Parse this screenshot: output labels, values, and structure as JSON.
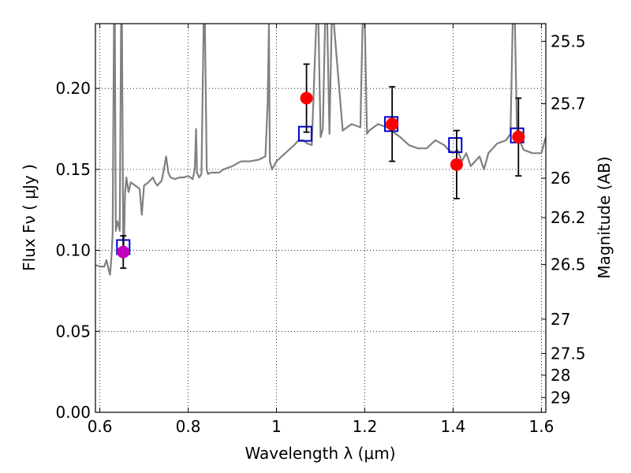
{
  "chart_data": {
    "type": "scatter",
    "xlabel": "Wavelength  λ (μm)",
    "ylabel_left": "Flux  Fν  ( μJy )",
    "ylabel_right": "Magnitude (AB)",
    "xlim": [
      0.59,
      1.61
    ],
    "ylim": [
      0.0,
      0.24
    ],
    "x_ticks": [
      0.6,
      0.8,
      1.0,
      1.2,
      1.4,
      1.6
    ],
    "x_tick_labels": [
      "0.6",
      "0.8",
      "1",
      "1.2",
      "1.4",
      "1.6"
    ],
    "y_ticks": [
      0.0,
      0.05,
      0.1,
      0.15,
      0.2
    ],
    "y_tick_labels": [
      "0.00",
      "0.05",
      "0.10",
      "0.15",
      "0.20"
    ],
    "right_ticks": [
      {
        "label": "25.5",
        "mag": 25.5
      },
      {
        "label": "25.7",
        "mag": 25.7
      },
      {
        "label": "26",
        "mag": 26.0
      },
      {
        "label": "26.2",
        "mag": 26.2
      },
      {
        "label": "26.5",
        "mag": 26.5
      },
      {
        "label": "27",
        "mag": 27.0
      },
      {
        "label": "27.5",
        "mag": 27.5
      },
      {
        "label": "28",
        "mag": 28.0
      },
      {
        "label": "29",
        "mag": 29.0
      }
    ],
    "grid": true,
    "series": [
      {
        "kind": "line",
        "color": "#808080",
        "x": [
          0.59,
          0.6,
          0.61,
          0.615,
          0.62,
          0.623,
          0.626,
          0.629,
          0.632,
          0.634,
          0.636,
          0.64,
          0.645,
          0.648,
          0.65,
          0.653,
          0.655,
          0.657,
          0.66,
          0.665,
          0.67,
          0.68,
          0.69,
          0.695,
          0.7,
          0.71,
          0.72,
          0.725,
          0.73,
          0.74,
          0.745,
          0.75,
          0.755,
          0.76,
          0.77,
          0.78,
          0.79,
          0.8,
          0.81,
          0.815,
          0.818,
          0.82,
          0.825,
          0.83,
          0.835,
          0.838,
          0.842,
          0.845,
          0.85,
          0.86,
          0.87,
          0.88,
          0.9,
          0.92,
          0.94,
          0.96,
          0.975,
          0.98,
          0.983,
          0.985,
          0.99,
          1.0,
          1.02,
          1.04,
          1.05,
          1.06,
          1.07,
          1.08,
          1.09,
          1.095,
          1.1,
          1.105,
          1.11,
          1.115,
          1.12,
          1.125,
          1.13,
          1.15,
          1.17,
          1.19,
          1.195,
          1.2,
          1.205,
          1.21,
          1.23,
          1.25,
          1.26,
          1.28,
          1.3,
          1.32,
          1.34,
          1.36,
          1.38,
          1.39,
          1.4,
          1.41,
          1.42,
          1.43,
          1.44,
          1.45,
          1.46,
          1.47,
          1.48,
          1.5,
          1.52,
          1.53,
          1.535,
          1.54,
          1.545,
          1.55,
          1.56,
          1.58,
          1.59,
          1.6,
          1.61
        ],
        "y": [
          0.091,
          0.09,
          0.09,
          0.094,
          0.088,
          0.085,
          0.095,
          0.11,
          0.24,
          0.24,
          0.112,
          0.118,
          0.112,
          0.24,
          0.24,
          0.1,
          0.108,
          0.135,
          0.145,
          0.136,
          0.142,
          0.14,
          0.138,
          0.122,
          0.14,
          0.142,
          0.145,
          0.142,
          0.14,
          0.143,
          0.15,
          0.158,
          0.148,
          0.145,
          0.144,
          0.145,
          0.145,
          0.146,
          0.144,
          0.15,
          0.175,
          0.148,
          0.145,
          0.147,
          0.24,
          0.24,
          0.15,
          0.147,
          0.148,
          0.148,
          0.148,
          0.15,
          0.152,
          0.155,
          0.155,
          0.156,
          0.158,
          0.19,
          0.24,
          0.155,
          0.15,
          0.155,
          0.16,
          0.165,
          0.168,
          0.168,
          0.166,
          0.165,
          0.24,
          0.24,
          0.17,
          0.175,
          0.24,
          0.24,
          0.172,
          0.24,
          0.24,
          0.174,
          0.178,
          0.176,
          0.24,
          0.24,
          0.172,
          0.174,
          0.178,
          0.176,
          0.174,
          0.17,
          0.165,
          0.163,
          0.163,
          0.168,
          0.165,
          0.162,
          0.16,
          0.162,
          0.155,
          0.16,
          0.152,
          0.155,
          0.158,
          0.15,
          0.16,
          0.166,
          0.168,
          0.172,
          0.24,
          0.24,
          0.17,
          0.168,
          0.162,
          0.16,
          0.16,
          0.16,
          0.17
        ]
      },
      {
        "kind": "squares",
        "color": "#0000cc",
        "x": [
          0.653,
          1.065,
          1.26,
          1.405,
          1.545
        ],
        "y": [
          0.102,
          0.172,
          0.178,
          0.165,
          0.171
        ]
      },
      {
        "kind": "points",
        "color": "#ff0000",
        "x": [
          1.068,
          1.262,
          1.408,
          1.548
        ],
        "y": [
          0.194,
          0.178,
          0.153,
          0.17
        ],
        "yerr": [
          0.021,
          0.023,
          0.021,
          0.024
        ]
      },
      {
        "kind": "points",
        "color": "#bf00bf",
        "x": [
          0.653
        ],
        "y": [
          0.099
        ],
        "yerr": [
          0.01
        ]
      }
    ]
  }
}
